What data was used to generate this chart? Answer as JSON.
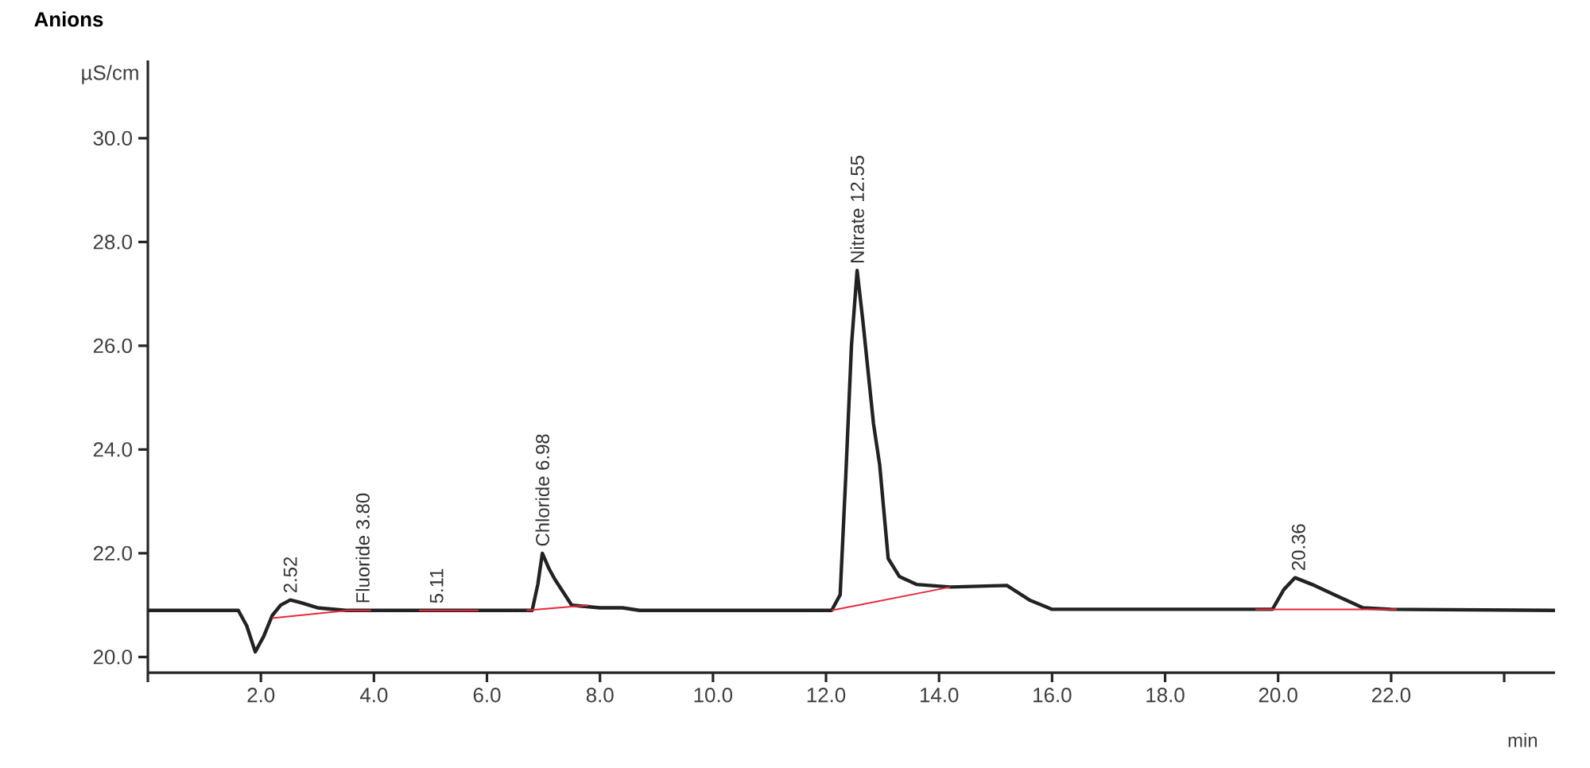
{
  "chart_data": {
    "type": "line",
    "title": "Anions",
    "ylabel": "µS/cm",
    "xlabel": "min",
    "xlim": [
      0,
      24.9
    ],
    "ylim": [
      19.7,
      31.5
    ],
    "xticks": [
      {
        "value": 0,
        "label": null
      },
      {
        "value": 2,
        "label": "2.0"
      },
      {
        "value": 4,
        "label": "4.0"
      },
      {
        "value": 6,
        "label": "6.0"
      },
      {
        "value": 8,
        "label": "8.0"
      },
      {
        "value": 10,
        "label": "10.0"
      },
      {
        "value": 12,
        "label": "12.0"
      },
      {
        "value": 14,
        "label": "14.0"
      },
      {
        "value": 16,
        "label": "16.0"
      },
      {
        "value": 18,
        "label": "18.0"
      },
      {
        "value": 20,
        "label": "20.0"
      },
      {
        "value": 22,
        "label": "22.0"
      },
      {
        "value": 24,
        "label": null
      }
    ],
    "yticks": [
      {
        "value": 20,
        "label": "20.0"
      },
      {
        "value": 22,
        "label": "22.0"
      },
      {
        "value": 24,
        "label": "24.0"
      },
      {
        "value": 26,
        "label": "26.0"
      },
      {
        "value": 28,
        "label": "28.0"
      },
      {
        "value": 30,
        "label": "30.0"
      }
    ],
    "grid": false,
    "series": [
      {
        "color": "#222222",
        "x": [
          0,
          1.6,
          1.75,
          1.9,
          2.05,
          2.2,
          2.35,
          2.52,
          2.7,
          3.0,
          3.5,
          4.0,
          5.0,
          6.0,
          6.8,
          6.9,
          6.98,
          7.1,
          7.2,
          7.5,
          8.0,
          8.4,
          8.7,
          10.0,
          12.1,
          12.25,
          12.35,
          12.45,
          12.55,
          12.65,
          12.84,
          12.95,
          13.1,
          13.3,
          13.6,
          14.2,
          15.2,
          15.6,
          16.0,
          18.0,
          19.9,
          20.1,
          20.3,
          20.6,
          21.0,
          21.5,
          22.0,
          24.9
        ],
        "values": [
          20.9,
          20.9,
          20.6,
          20.1,
          20.4,
          20.8,
          21.0,
          21.1,
          21.05,
          20.95,
          20.9,
          20.9,
          20.9,
          20.9,
          20.9,
          21.4,
          22.0,
          21.7,
          21.5,
          21.0,
          20.95,
          20.95,
          20.9,
          20.9,
          20.9,
          21.2,
          23.5,
          26.0,
          27.45,
          26.5,
          24.5,
          23.7,
          21.9,
          21.55,
          21.4,
          21.35,
          21.38,
          21.1,
          20.92,
          20.92,
          20.92,
          21.3,
          21.53,
          21.4,
          21.2,
          20.95,
          20.92,
          20.9
        ]
      },
      {
        "color": "#e8283c",
        "x": [
          2.2,
          3.55,
          3.7,
          3.95,
          4.4,
          4.8,
          5.85,
          6.3,
          6.7,
          7.8,
          10.0,
          12.1,
          14.2,
          17.0,
          19.6,
          22.1
        ],
        "values": [
          20.75,
          20.9,
          20.9,
          20.9,
          null,
          20.9,
          20.9,
          null,
          20.9,
          21.0,
          null,
          20.9,
          21.35,
          null,
          20.92,
          20.92
        ]
      }
    ],
    "annotations": [
      {
        "text": "2.52",
        "x": 2.52,
        "y": 21.1
      },
      {
        "text": "Fluoride 3.80",
        "x": 3.8,
        "y": 20.9
      },
      {
        "text": "5.11",
        "x": 5.11,
        "y": 20.9
      },
      {
        "text": "Chloride 6.98",
        "x": 6.98,
        "y": 22.0
      },
      {
        "text": "Nitrate 12.55",
        "x": 12.55,
        "y": 27.45
      },
      {
        "text": "20.36",
        "x": 20.36,
        "y": 21.53
      }
    ]
  }
}
